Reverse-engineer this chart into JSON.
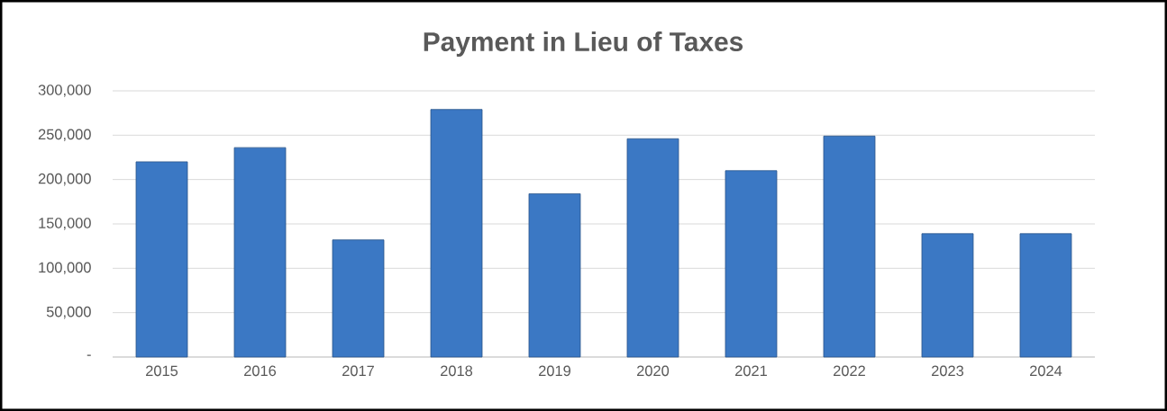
{
  "chart_data": {
    "type": "bar",
    "title": "Payment in Lieu of Taxes",
    "categories": [
      "2015",
      "2016",
      "2017",
      "2018",
      "2019",
      "2020",
      "2021",
      "2022",
      "2023",
      "2024"
    ],
    "values": [
      220000,
      236000,
      132000,
      279000,
      184000,
      246000,
      210000,
      249000,
      139000,
      139000
    ],
    "color": "#3b78c4",
    "ylim": [
      0,
      300000
    ],
    "yticks": [
      {
        "value": 0,
        "label": "-"
      },
      {
        "value": 50000,
        "label": "50,000"
      },
      {
        "value": 100000,
        "label": "100,000"
      },
      {
        "value": 150000,
        "label": "150,000"
      },
      {
        "value": 200000,
        "label": "200,000"
      },
      {
        "value": 250000,
        "label": "250,000"
      },
      {
        "value": 300000,
        "label": "300,000"
      }
    ],
    "grid": "y"
  }
}
